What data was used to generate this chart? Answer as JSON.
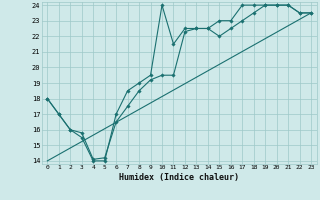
{
  "xlabel": "Humidex (Indice chaleur)",
  "xlim": [
    -0.5,
    23.5
  ],
  "ylim": [
    13.8,
    24.2
  ],
  "xticks": [
    0,
    1,
    2,
    3,
    4,
    5,
    6,
    7,
    8,
    9,
    10,
    11,
    12,
    13,
    14,
    15,
    16,
    17,
    18,
    19,
    20,
    21,
    22,
    23
  ],
  "yticks": [
    14,
    15,
    16,
    17,
    18,
    19,
    20,
    21,
    22,
    23,
    24
  ],
  "bg_color": "#cfe9e9",
  "grid_color": "#9ec8c8",
  "line_color": "#1a7070",
  "line1_x": [
    0,
    1,
    2,
    3,
    4,
    5,
    6,
    7,
    8,
    9,
    10,
    11,
    12,
    13,
    14,
    15,
    16,
    17,
    18,
    19,
    20,
    21,
    22,
    23
  ],
  "line1_y": [
    18.0,
    17.0,
    16.0,
    15.5,
    14.0,
    14.0,
    17.0,
    18.5,
    19.0,
    19.5,
    24.0,
    21.5,
    22.5,
    22.5,
    22.5,
    23.0,
    23.0,
    24.0,
    24.0,
    24.0,
    24.0,
    24.0,
    23.5,
    23.5
  ],
  "line2_x": [
    0,
    1,
    2,
    3,
    4,
    5,
    6,
    7,
    8,
    9,
    10,
    11,
    12,
    13,
    14,
    15,
    16,
    17,
    18,
    19,
    20,
    21,
    22,
    23
  ],
  "line2_y": [
    18.0,
    17.0,
    16.0,
    15.8,
    14.1,
    14.2,
    16.5,
    17.5,
    18.5,
    19.2,
    19.5,
    19.5,
    22.3,
    22.5,
    22.5,
    22.0,
    22.5,
    23.0,
    23.5,
    24.0,
    24.0,
    24.0,
    23.5,
    23.5
  ],
  "line3_x": [
    0,
    23
  ],
  "line3_y": [
    14.0,
    23.5
  ]
}
